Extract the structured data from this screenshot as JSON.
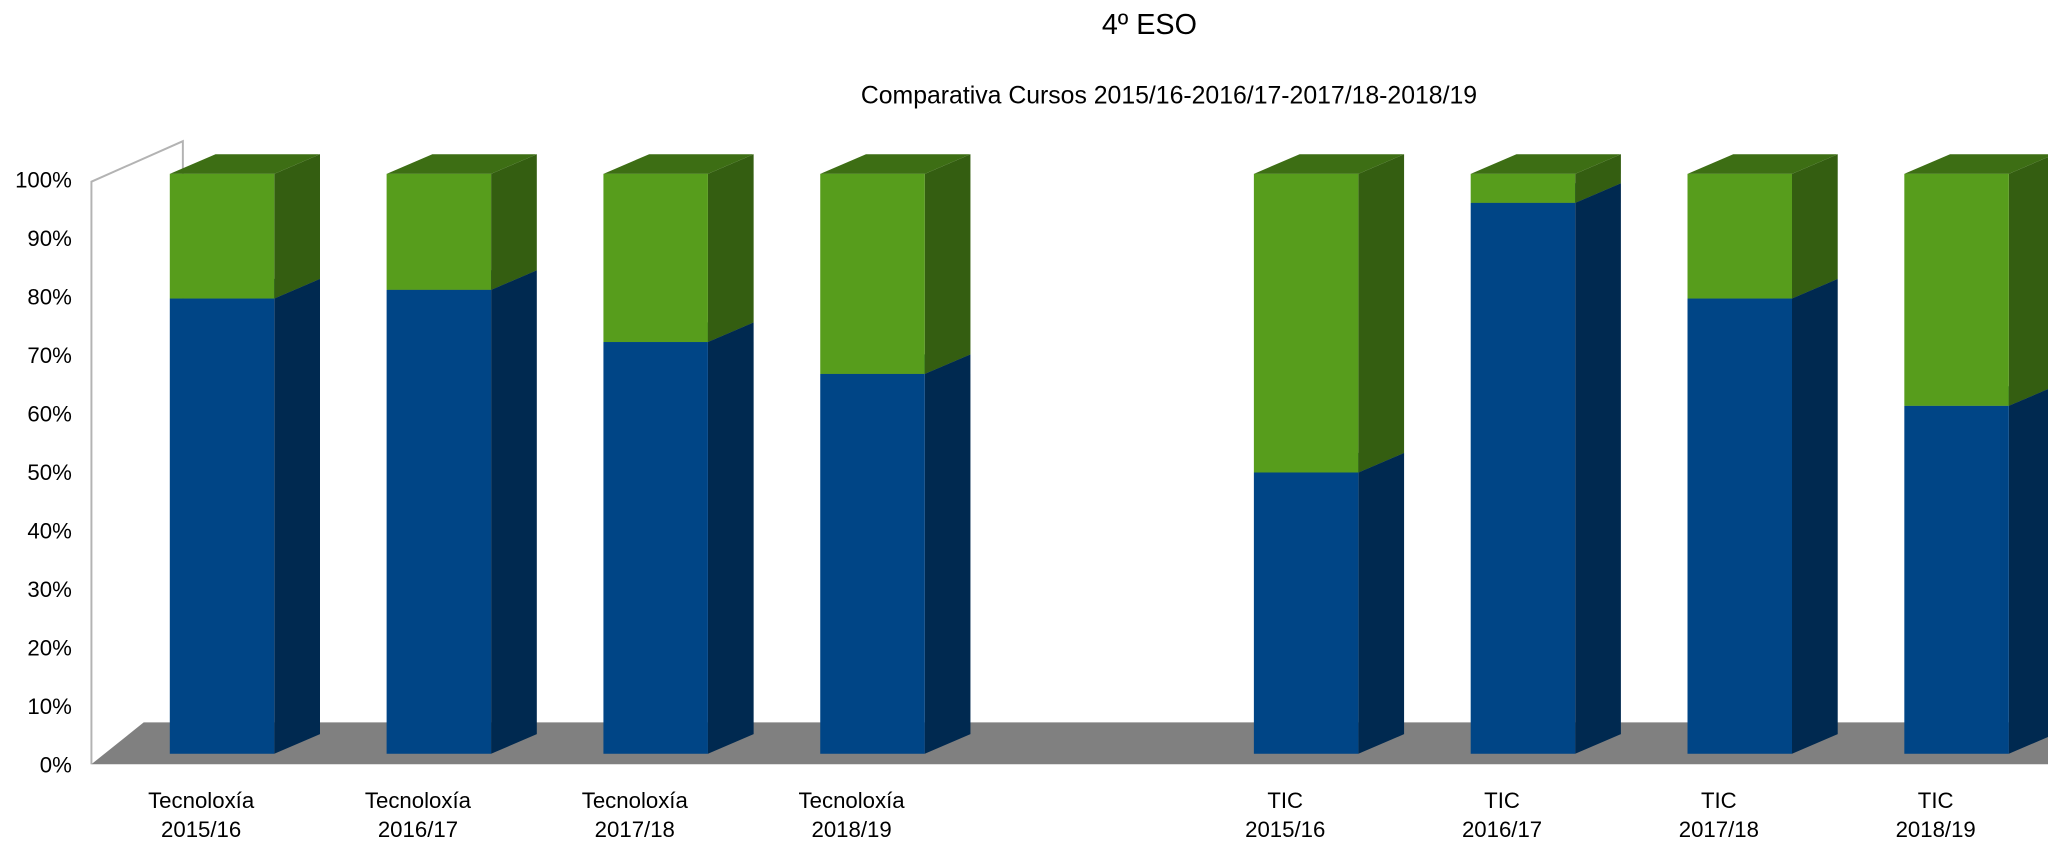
{
  "chart_data": {
    "type": "bar",
    "stacked": true,
    "title": "4º ESO",
    "subtitle": "Comparativa Cursos 2015/16-2016/17-2017/18-2018/19",
    "categories": [
      "Tecnoloxía\n2015/16",
      "Tecnoloxía\n2016/17",
      "Tecnoloxía\n2017/18",
      "Tecnoloxía\n2018/19",
      null,
      "TIC\n2015/16",
      "TIC\n2016/17",
      "TIC\n2017/18",
      "TIC\n2018/19"
    ],
    "series": [
      {
        "color": "#004586",
        "values": [
          78.5,
          80,
          71,
          65.5,
          null,
          48.5,
          95,
          78.5,
          60
        ]
      },
      {
        "color": "#579d1c",
        "values": [
          21.5,
          20,
          29,
          34.5,
          null,
          51.5,
          5,
          21.5,
          40
        ]
      }
    ],
    "ylim": [
      0,
      100
    ],
    "yticks": [
      {
        "value": 0,
        "label": "0%"
      },
      {
        "value": 10,
        "label": "10%"
      },
      {
        "value": 20,
        "label": "20%"
      },
      {
        "value": 30,
        "label": "30%"
      },
      {
        "value": 40,
        "label": "40%"
      },
      {
        "value": 50,
        "label": "50%"
      },
      {
        "value": 60,
        "label": "60%"
      },
      {
        "value": 70,
        "label": "70%"
      },
      {
        "value": 80,
        "label": "80%"
      },
      {
        "value": 90,
        "label": "90%"
      },
      {
        "value": 100,
        "label": "100%"
      }
    ]
  }
}
